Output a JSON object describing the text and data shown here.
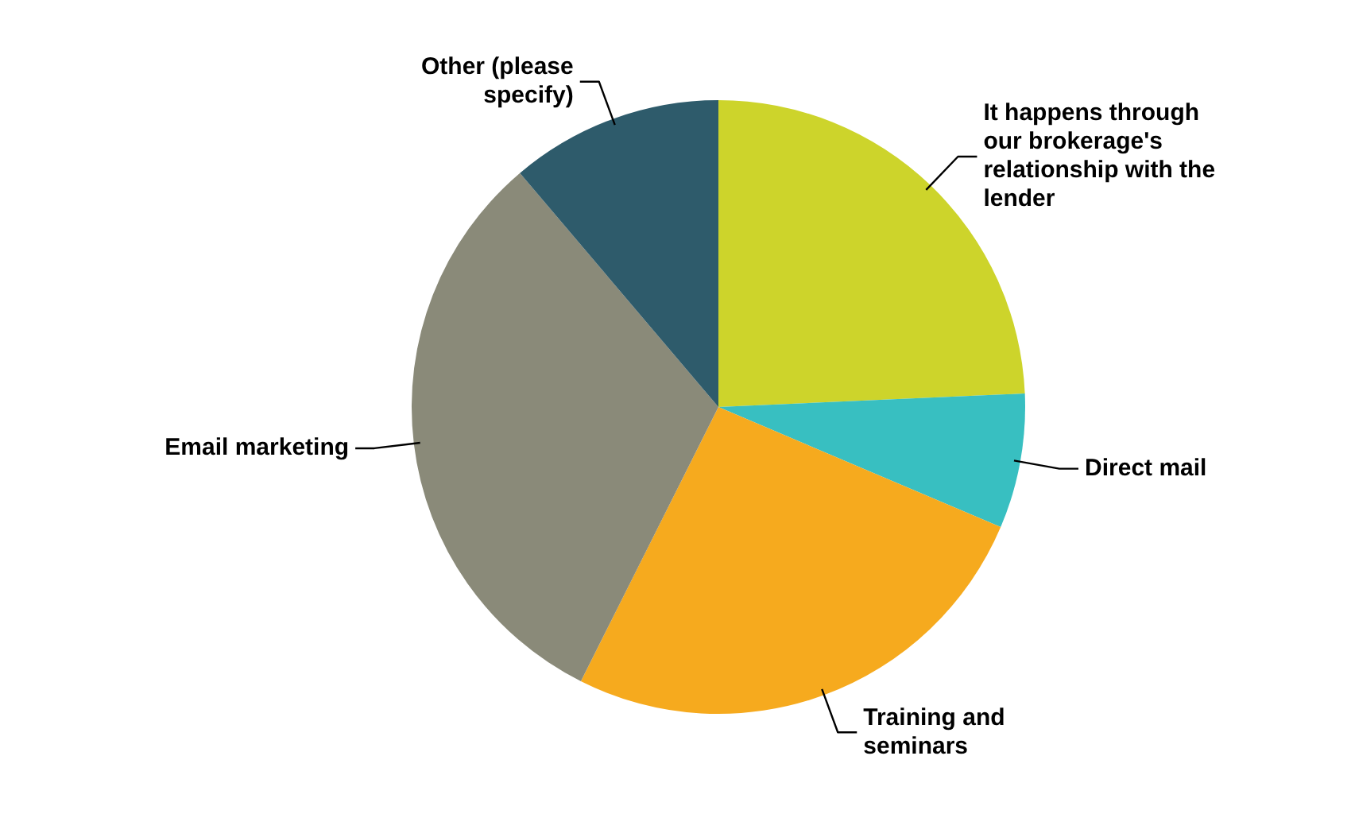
{
  "chart_data": {
    "type": "pie",
    "categories": [
      "It happens through our brokerage's relationship with the lender",
      "Direct mail",
      "Training and seminars",
      "Email marketing",
      "Other (please specify)"
    ],
    "values": [
      24.3,
      7.1,
      26.0,
      31.4,
      11.2
    ],
    "colors": [
      "#cdd42b",
      "#38bfc1",
      "#f6aa1e",
      "#8a8a79",
      "#2e5b6b"
    ],
    "legend": false
  }
}
